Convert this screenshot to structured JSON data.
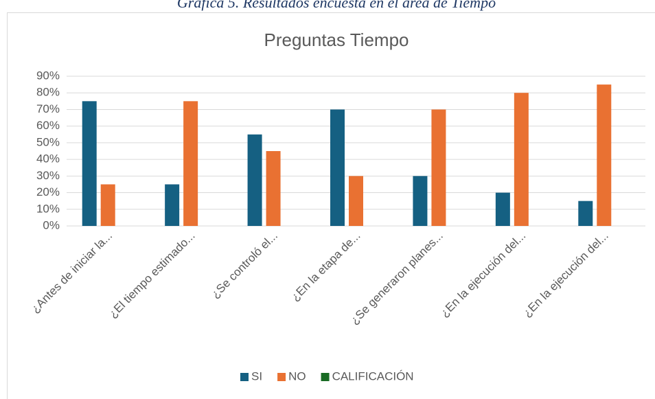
{
  "caption": "Gráfica 5. Resultados encuesta en el área de Tiempo",
  "chart_data": {
    "type": "bar",
    "title": "Preguntas Tiempo",
    "categories": [
      "¿Antes de iniciar la...",
      "¿El tiempo estimado...",
      "¿Se controló el...",
      "¿En la etapa de...",
      "¿Se generaron planes...",
      "¿En la ejecución del...",
      "¿En la ejecución del..."
    ],
    "series": [
      {
        "name": "SI",
        "color": "#156082",
        "values": [
          75,
          25,
          55,
          70,
          30,
          20,
          15
        ]
      },
      {
        "name": "NO",
        "color": "#e97132",
        "values": [
          25,
          75,
          45,
          30,
          70,
          80,
          85
        ]
      },
      {
        "name": "CALIFICACIÓN",
        "color": "#196b24",
        "values": [
          null,
          null,
          null,
          null,
          null,
          null,
          null
        ]
      }
    ],
    "ylim": [
      0,
      90
    ],
    "yticks": [
      {
        "value": 0,
        "label": "0%"
      },
      {
        "value": 10,
        "label": "10%"
      },
      {
        "value": 20,
        "label": "20%"
      },
      {
        "value": 30,
        "label": "30%"
      },
      {
        "value": 40,
        "label": "40%"
      },
      {
        "value": 50,
        "label": "50%"
      },
      {
        "value": 60,
        "label": "60%"
      },
      {
        "value": 70,
        "label": "70%"
      },
      {
        "value": 80,
        "label": "80%"
      },
      {
        "value": 90,
        "label": "90%"
      }
    ],
    "grid": true,
    "legend": "bottom"
  }
}
